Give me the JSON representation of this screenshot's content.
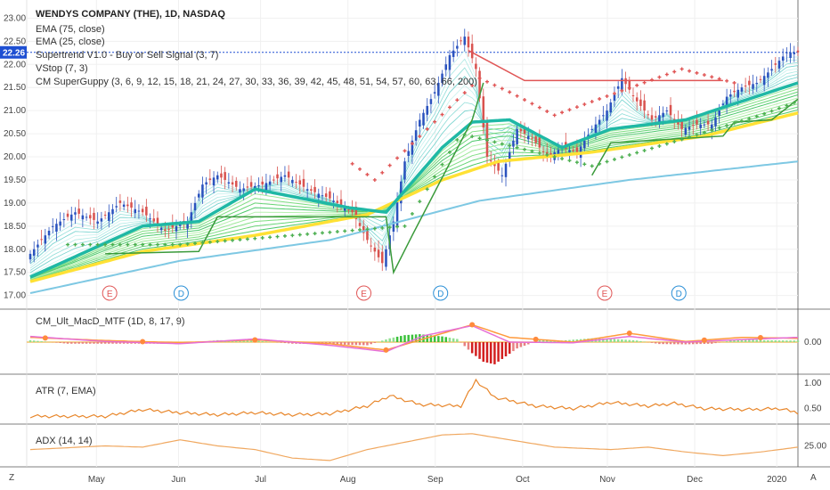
{
  "header": {
    "title": "WENDYS COMPANY (THE), 1D, NASDAQ",
    "indicators": [
      "EMA (75, close)",
      "EMA (25, close)",
      "Supertrend V1.0 - Buy or Sell Signal (3, 7)",
      "VStop (7, 3)",
      "CM SuperGuppy (3, 6, 9, 12, 15, 18, 21, 24, 27, 30, 33, 36, 39, 42, 45, 48, 51, 54, 57, 60, 63, 66, 200)"
    ]
  },
  "last_price": "22.26",
  "colors": {
    "up": "#2a52be",
    "down": "#d9534f",
    "ema75": "#ffe135",
    "ema25": "#1fb8a5",
    "ema200": "#7ec8e3",
    "supertrend_up": "#3a9a3a",
    "supertrend_down": "#e05555",
    "macd_line": "#e66fd6",
    "signal_line": "#ff9a3c",
    "atr": "#e8862a",
    "adx": "#f0a860"
  },
  "panes": {
    "macd_label": "CM_Ult_MacD_MTF (1D, 8, 17, 9)",
    "atr_label": "ATR (7, EMA)",
    "adx_label": "ADX (14, 14)"
  },
  "events": [
    {
      "letter": "E",
      "date": "May-05"
    },
    {
      "letter": "D",
      "date": "Jun-01"
    },
    {
      "letter": "E",
      "date": "Aug-06"
    },
    {
      "letter": "D",
      "date": "Aug-30"
    },
    {
      "letter": "E",
      "date": "Nov-06"
    },
    {
      "letter": "D",
      "date": "Nov-30"
    }
  ],
  "footer": {
    "left": "Z",
    "right": "A"
  },
  "chart_data": {
    "type": "candlestick",
    "x_labels": [
      "May",
      "Jun",
      "Jul",
      "Aug",
      "Sep",
      "Oct",
      "Nov",
      "Dec",
      "2020"
    ],
    "price_ticks": [
      "23.00",
      "22.50",
      "22.00",
      "21.50",
      "21.00",
      "20.50",
      "20.00",
      "19.50",
      "19.00",
      "18.50",
      "18.00",
      "17.50",
      "17.00"
    ],
    "ylim": [
      16.8,
      23.2
    ],
    "price_anchors": [
      [
        0,
        17.9
      ],
      [
        6,
        18.5
      ],
      [
        12,
        18.8
      ],
      [
        18,
        18.6
      ],
      [
        24,
        19.0
      ],
      [
        30,
        18.8
      ],
      [
        36,
        18.4
      ],
      [
        42,
        18.6
      ],
      [
        46,
        19.4
      ],
      [
        50,
        19.6
      ],
      [
        56,
        19.3
      ],
      [
        62,
        19.4
      ],
      [
        68,
        19.6
      ],
      [
        74,
        19.3
      ],
      [
        80,
        19.1
      ],
      [
        86,
        18.8
      ],
      [
        90,
        18.2
      ],
      [
        94,
        17.7
      ],
      [
        97,
        18.6
      ],
      [
        100,
        19.9
      ],
      [
        104,
        20.8
      ],
      [
        108,
        21.4
      ],
      [
        112,
        22.2
      ],
      [
        116,
        22.6
      ],
      [
        119,
        21.9
      ],
      [
        122,
        20.0
      ],
      [
        126,
        19.6
      ],
      [
        130,
        20.6
      ],
      [
        134,
        20.4
      ],
      [
        138,
        20.0
      ],
      [
        142,
        20.2
      ],
      [
        146,
        20.1
      ],
      [
        150,
        20.6
      ],
      [
        154,
        21.0
      ],
      [
        158,
        21.7
      ],
      [
        162,
        21.2
      ],
      [
        166,
        20.8
      ],
      [
        170,
        21.0
      ],
      [
        174,
        20.6
      ],
      [
        178,
        20.7
      ],
      [
        182,
        20.7
      ],
      [
        186,
        21.3
      ],
      [
        190,
        21.5
      ],
      [
        194,
        21.6
      ],
      [
        198,
        21.9
      ],
      [
        202,
        22.26
      ]
    ],
    "ema200": [
      [
        0,
        17.05
      ],
      [
        40,
        17.75
      ],
      [
        80,
        18.2
      ],
      [
        120,
        19.05
      ],
      [
        160,
        19.5
      ],
      [
        205,
        19.9
      ]
    ],
    "ema75": [
      [
        0,
        17.3
      ],
      [
        30,
        17.95
      ],
      [
        60,
        18.3
      ],
      [
        90,
        18.75
      ],
      [
        110,
        19.5
      ],
      [
        125,
        19.9
      ],
      [
        150,
        20.1
      ],
      [
        180,
        20.45
      ],
      [
        205,
        20.95
      ]
    ],
    "ema25": [
      [
        0,
        17.4
      ],
      [
        30,
        18.5
      ],
      [
        45,
        18.6
      ],
      [
        60,
        19.3
      ],
      [
        85,
        18.9
      ],
      [
        95,
        18.8
      ],
      [
        110,
        20.2
      ],
      [
        118,
        20.75
      ],
      [
        128,
        20.8
      ],
      [
        142,
        20.2
      ],
      [
        155,
        20.6
      ],
      [
        175,
        20.8
      ],
      [
        205,
        21.6
      ]
    ],
    "supertrend_up": [
      [
        20,
        17.9
      ],
      [
        45,
        17.95
      ],
      [
        50,
        18.7
      ],
      [
        95,
        18.7
      ],
      [
        97,
        17.5
      ],
      [
        102,
        18.3
      ],
      [
        118,
        20.8
      ],
      [
        121,
        21.6
      ]
    ],
    "supertrend_down": [
      [
        117,
        22.3
      ],
      [
        132,
        21.65
      ],
      [
        185,
        21.65
      ]
    ],
    "supertrend_up_late": [
      [
        150,
        19.6
      ],
      [
        155,
        20.3
      ],
      [
        185,
        20.45
      ],
      [
        188,
        20.75
      ],
      [
        198,
        20.8
      ],
      [
        205,
        21.25
      ]
    ],
    "vstop_up": [
      [
        10,
        18.1
      ],
      [
        40,
        18.1
      ],
      [
        100,
        18.5
      ],
      [
        115,
        20.5
      ],
      [
        125,
        20.3
      ],
      [
        140,
        20.0
      ],
      [
        150,
        19.8
      ],
      [
        175,
        20.4
      ],
      [
        195,
        20.9
      ],
      [
        205,
        21.2
      ]
    ],
    "vstop_down": [
      [
        86,
        19.85
      ],
      [
        92,
        19.5
      ],
      [
        120,
        21.7
      ],
      [
        128,
        21.4
      ],
      [
        140,
        20.9
      ],
      [
        174,
        21.9
      ],
      [
        188,
        21.6
      ]
    ],
    "macd": {
      "ylim": [
        -0.9,
        0.9
      ],
      "tick": "0.00",
      "macd_line": [
        [
          0,
          0.18
        ],
        [
          20,
          0.02
        ],
        [
          40,
          -0.05
        ],
        [
          60,
          0.1
        ],
        [
          80,
          -0.1
        ],
        [
          95,
          -0.3
        ],
        [
          105,
          0.2
        ],
        [
          118,
          0.52
        ],
        [
          128,
          0.0
        ],
        [
          145,
          -0.02
        ],
        [
          160,
          0.18
        ],
        [
          175,
          0.0
        ],
        [
          190,
          0.08
        ],
        [
          205,
          0.15
        ]
      ],
      "signal_line": [
        [
          0,
          0.15
        ],
        [
          20,
          0.05
        ],
        [
          40,
          -0.02
        ],
        [
          60,
          0.07
        ],
        [
          80,
          -0.05
        ],
        [
          95,
          -0.25
        ],
        [
          105,
          0.1
        ],
        [
          118,
          0.55
        ],
        [
          128,
          0.15
        ],
        [
          145,
          0.0
        ],
        [
          160,
          0.28
        ],
        [
          175,
          0.02
        ],
        [
          190,
          0.15
        ],
        [
          205,
          0.12
        ]
      ],
      "hist": [
        [
          0,
          0.06
        ],
        [
          10,
          -0.05
        ],
        [
          20,
          -0.05
        ],
        [
          30,
          -0.05
        ],
        [
          40,
          -0.05
        ],
        [
          50,
          0.06
        ],
        [
          60,
          0.05
        ],
        [
          70,
          -0.05
        ],
        [
          80,
          -0.07
        ],
        [
          90,
          -0.1
        ],
        [
          96,
          0.12
        ],
        [
          100,
          0.22
        ],
        [
          104,
          0.25
        ],
        [
          110,
          0.18
        ],
        [
          114,
          0.1
        ],
        [
          118,
          -0.35
        ],
        [
          121,
          -0.62
        ],
        [
          124,
          -0.7
        ],
        [
          127,
          -0.45
        ],
        [
          130,
          -0.2
        ],
        [
          136,
          0.06
        ],
        [
          142,
          0.05
        ],
        [
          150,
          0.12
        ],
        [
          156,
          0.1
        ],
        [
          162,
          0.05
        ],
        [
          168,
          -0.06
        ],
        [
          175,
          -0.07
        ],
        [
          182,
          -0.05
        ],
        [
          190,
          0.1
        ],
        [
          196,
          0.06
        ],
        [
          202,
          0.05
        ]
      ]
    },
    "atr": {
      "ticks": [
        "1.00",
        "0.50"
      ],
      "ylim": [
        0.25,
        1.1
      ],
      "values": [
        [
          0,
          0.35
        ],
        [
          20,
          0.35
        ],
        [
          30,
          0.48
        ],
        [
          40,
          0.42
        ],
        [
          50,
          0.38
        ],
        [
          60,
          0.42
        ],
        [
          70,
          0.38
        ],
        [
          80,
          0.4
        ],
        [
          90,
          0.55
        ],
        [
          96,
          0.75
        ],
        [
          104,
          0.58
        ],
        [
          115,
          0.55
        ],
        [
          119,
          1.05
        ],
        [
          124,
          0.72
        ],
        [
          135,
          0.55
        ],
        [
          145,
          0.5
        ],
        [
          155,
          0.62
        ],
        [
          165,
          0.55
        ],
        [
          172,
          0.6
        ],
        [
          180,
          0.5
        ],
        [
          192,
          0.48
        ],
        [
          200,
          0.5
        ],
        [
          205,
          0.42
        ]
      ]
    },
    "adx": {
      "ticks": [
        "25.00"
      ],
      "ylim": [
        10,
        40
      ],
      "values": [
        [
          0,
          22
        ],
        [
          20,
          25
        ],
        [
          30,
          24
        ],
        [
          40,
          30
        ],
        [
          50,
          25
        ],
        [
          60,
          22
        ],
        [
          70,
          15
        ],
        [
          80,
          13
        ],
        [
          90,
          22
        ],
        [
          100,
          28
        ],
        [
          110,
          34
        ],
        [
          118,
          35
        ],
        [
          128,
          30
        ],
        [
          140,
          24
        ],
        [
          155,
          22
        ],
        [
          165,
          24
        ],
        [
          175,
          20
        ],
        [
          185,
          17
        ],
        [
          195,
          20
        ],
        [
          205,
          24
        ]
      ]
    }
  }
}
